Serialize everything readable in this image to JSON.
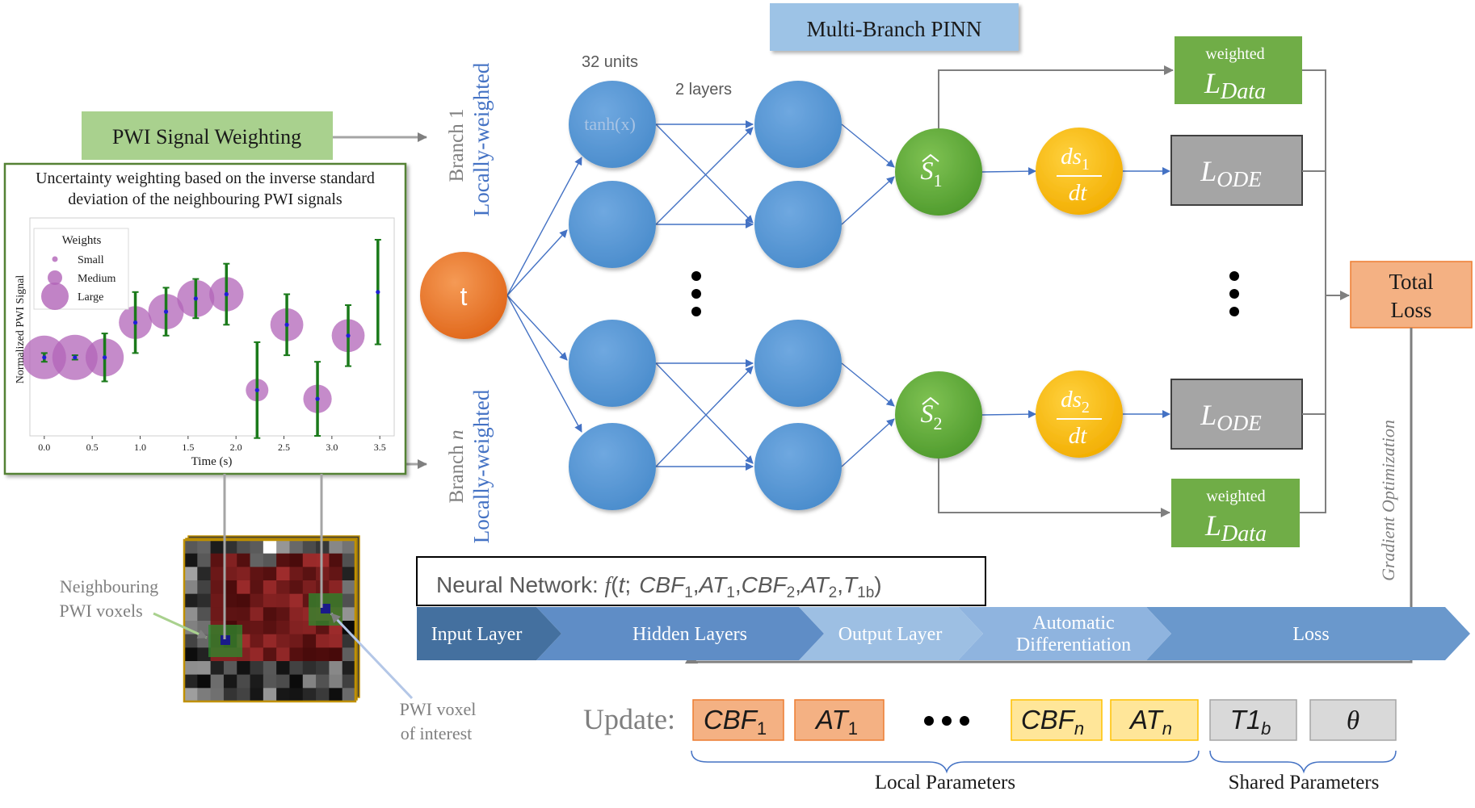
{
  "title": "Multi-Branch PINN",
  "weighting": {
    "label": "PWI Signal Weighting",
    "caption_line1": "Uncertainty weighting based on the inverse standard",
    "caption_line2": "deviation of the neighbouring PWI signals"
  },
  "chart_data": {
    "type": "scatter",
    "title": "",
    "xlabel": "Time (s)",
    "ylabel": "Normalized PWI Signal",
    "xlim": [
      -0.15,
      3.65
    ],
    "ylim": [
      0,
      1
    ],
    "x_ticks": [
      "0.0",
      "0.5",
      "1.0",
      "1.5",
      "2.0",
      "2.5",
      "3.0",
      "3.5"
    ],
    "grid": false,
    "legend": {
      "title": "Weights",
      "placement": "top-left",
      "entries": [
        {
          "label": "Small",
          "size": "small"
        },
        {
          "label": "Medium",
          "size": "medium"
        },
        {
          "label": "Large",
          "size": "large"
        }
      ]
    },
    "marker_color": "#b264b8",
    "point_color": "#1f1fd6",
    "errorbar_color": "#1a7a1a",
    "points": [
      {
        "x": 0.0,
        "y": 0.36,
        "err": 0.02,
        "weight": 0.95
      },
      {
        "x": 0.32,
        "y": 0.36,
        "err": 0.01,
        "weight": 1.0
      },
      {
        "x": 0.63,
        "y": 0.36,
        "err": 0.11,
        "weight": 0.78
      },
      {
        "x": 0.95,
        "y": 0.52,
        "err": 0.14,
        "weight": 0.62
      },
      {
        "x": 1.27,
        "y": 0.57,
        "err": 0.11,
        "weight": 0.7
      },
      {
        "x": 1.58,
        "y": 0.63,
        "err": 0.09,
        "weight": 0.75
      },
      {
        "x": 1.9,
        "y": 0.65,
        "err": 0.14,
        "weight": 0.66
      },
      {
        "x": 2.22,
        "y": 0.21,
        "err": 0.22,
        "weight": 0.3
      },
      {
        "x": 2.53,
        "y": 0.51,
        "err": 0.14,
        "weight": 0.62
      },
      {
        "x": 2.85,
        "y": 0.17,
        "err": 0.17,
        "weight": 0.48
      },
      {
        "x": 3.17,
        "y": 0.46,
        "err": 0.14,
        "weight": 0.62
      },
      {
        "x": 3.48,
        "y": 0.66,
        "err": 0.24,
        "weight": 0.0
      }
    ]
  },
  "voxels": {
    "neighbouring_line1": "Neighbouring",
    "neighbouring_line2": "PWI voxels",
    "interest_line1": "PWI voxel",
    "interest_line2": "of interest"
  },
  "input_node": "t",
  "branches": {
    "branch1_name": "Branch 1",
    "branchn_prefix": "Branch ",
    "branchn_index": "n",
    "qualifier": "Locally-weighted"
  },
  "network": {
    "units_label": "32 units",
    "layers_label": "2 layers",
    "activation": "tanh(x)",
    "output1": "S",
    "output1_sub": "1",
    "output2": "S",
    "output2_sub": "2",
    "deriv_num": "ds",
    "deriv1_sub": "1",
    "deriv2_sub": "2",
    "deriv_den": "dt"
  },
  "losses": {
    "weighted_label": "weighted",
    "data_main": "L",
    "data_sub": "Data",
    "ode_main": "L",
    "ode_sub": "ODE",
    "total_line1": "Total",
    "total_line2": "Loss",
    "gradient_label": "Gradient Optimization"
  },
  "formula": {
    "prefix": "Neural Network: ",
    "f": "f",
    "paren_open": "(",
    "t": "t",
    "semi": ";",
    "cbf1_main": "CBF",
    "cbf1_sub": "1",
    "at1_main": "AT",
    "at1_sub": "1",
    "cbf2_main": "CBF",
    "cbf2_sub": "2",
    "at2_main": "AT",
    "at2_sub": "2",
    "t1b_main": "T",
    "t1b_sub": "1b",
    "comma": ",",
    "paren_close": ")"
  },
  "pipeline": [
    "Input Layer",
    "Hidden Layers",
    "Output Layer",
    "Automatic",
    "Differentiation",
    "Loss"
  ],
  "update": {
    "label": "Update:",
    "params": [
      {
        "main": "CBF",
        "sub": "1",
        "group": "local1"
      },
      {
        "main": "AT",
        "sub": "1",
        "group": "local1"
      },
      {
        "main": "CBF",
        "sub": "n",
        "group": "localn"
      },
      {
        "main": "AT",
        "sub": "n",
        "group": "localn"
      },
      {
        "main": "T1",
        "sub": "b",
        "group": "shared"
      },
      {
        "main": "θ",
        "sub": "",
        "group": "shared"
      }
    ],
    "local_label": "Local Parameters",
    "shared_label": "Shared Parameters"
  },
  "colors": {
    "green_box": "#70ad47",
    "light_green_box": "#a9d18e",
    "blue_node": "#5b9bd5",
    "orange_node": "#ed7d31",
    "yellow_node": "#ffc000",
    "gray_box": "#a5a5a5",
    "total_loss": "#f4b183",
    "title_box": "#9dc3e6",
    "arrow_blue": "#4472c4",
    "arrow_gray": "#7f7f7f",
    "text_blue": "#4472c4",
    "local_param_1": "#f4b183",
    "local_param_n": "#ffe699",
    "shared_param": "#d9d9d9"
  }
}
